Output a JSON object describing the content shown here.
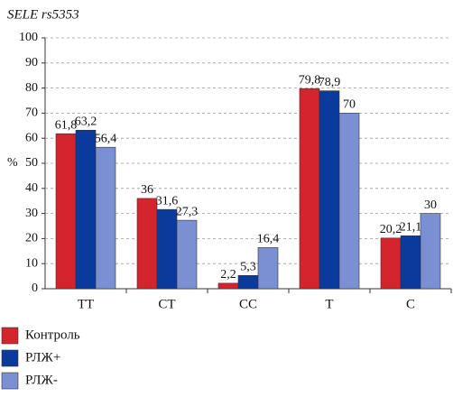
{
  "chart_data": {
    "type": "bar",
    "title": "SELE rs5353",
    "y_label": "%",
    "categories": [
      "TT",
      "CT",
      "CC",
      "T",
      "C"
    ],
    "series": [
      {
        "name": "Контроль",
        "color": "#d4252f",
        "values": [
          61.8,
          36,
          2.2,
          79.8,
          20.2
        ],
        "value_labels": [
          "61,8",
          "36",
          "2,2",
          "79,8",
          "20,2"
        ]
      },
      {
        "name": "РЛЖ+",
        "color": "#0a3a9c",
        "values": [
          63.2,
          31.6,
          5.3,
          78.9,
          21.1
        ],
        "value_labels": [
          "63,2",
          "31,6",
          "5,3",
          "78,9",
          "21,1"
        ]
      },
      {
        "name": "РЛЖ-",
        "color": "#7b8fd3",
        "values": [
          56.4,
          27.3,
          16.4,
          70,
          30
        ],
        "value_labels": [
          "56,4",
          "27,3",
          "16,4",
          "70",
          "30"
        ]
      }
    ],
    "ylim": [
      0,
      100
    ],
    "yticks": [
      0,
      10,
      20,
      30,
      40,
      50,
      60,
      70,
      80,
      90,
      100
    ],
    "grid": true
  }
}
